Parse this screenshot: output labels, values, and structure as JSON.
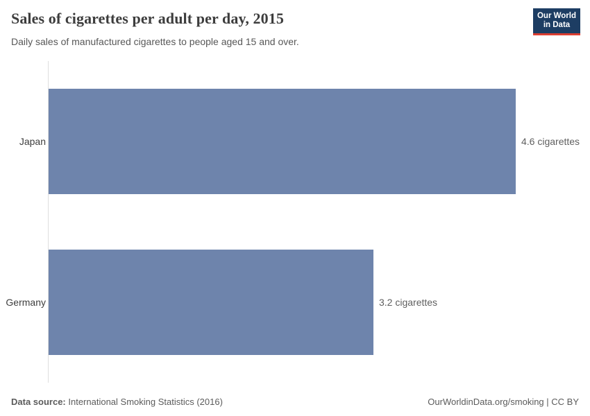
{
  "header": {
    "title": "Sales of cigarettes per adult per day, 2015",
    "subtitle": "Daily sales of manufactured cigarettes to people aged 15 and over.",
    "logo": {
      "line1": "Our World",
      "line2": "in Data"
    }
  },
  "chart_data": {
    "type": "bar",
    "orientation": "horizontal",
    "title": "Sales of cigarettes per adult per day, 2015",
    "categories": [
      "Japan",
      "Germany"
    ],
    "values": [
      4.6,
      3.2
    ],
    "value_labels": [
      "4.6 cigarettes",
      "3.2 cigarettes"
    ],
    "unit": "cigarettes",
    "xlabel": "",
    "ylabel": "",
    "xlim": [
      0,
      4.6
    ],
    "grid": false,
    "legend": false,
    "bar_color": "#6e84ac"
  },
  "footer": {
    "source_label": "Data source:",
    "source_value": "International Smoking Statistics (2016)",
    "credit": "OurWorldinData.org/smoking | CC BY"
  },
  "colors": {
    "bar": "#6e84ac",
    "logo_background": "#1d3d63",
    "logo_underline": "#dc3e32",
    "axis_line": "#dedede",
    "title_text": "#3d3d3d",
    "subtitle_text": "#575757"
  }
}
